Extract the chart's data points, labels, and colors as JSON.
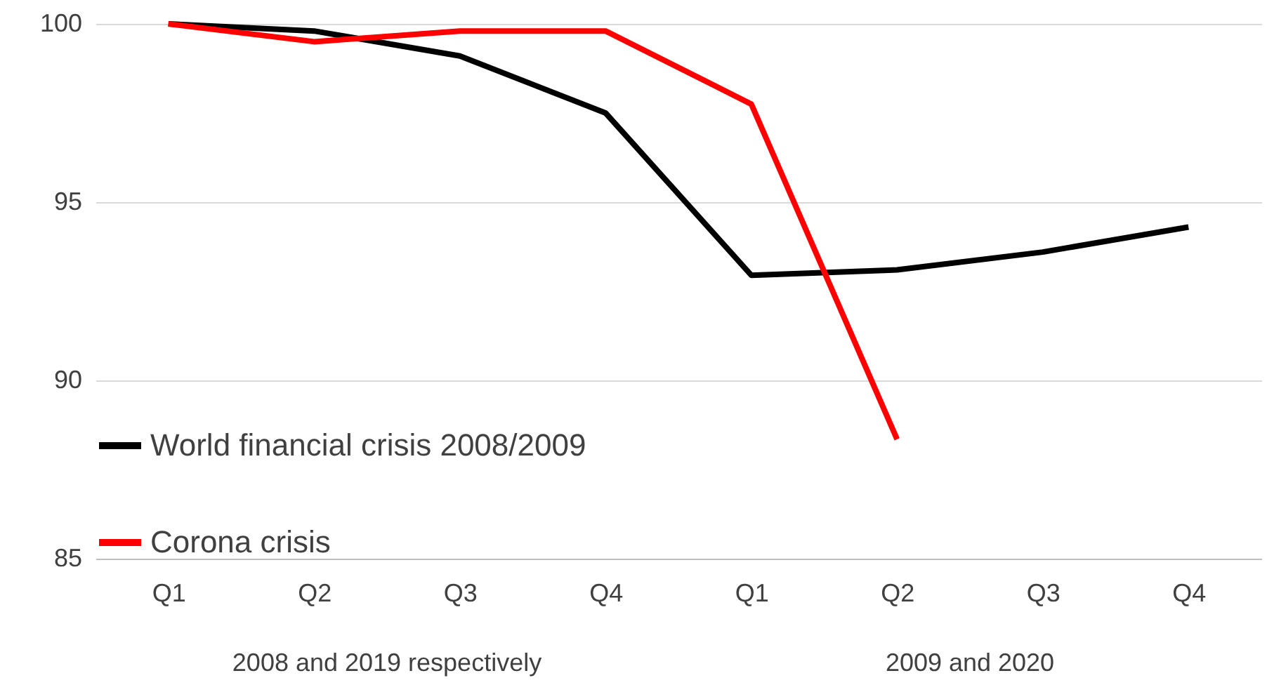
{
  "chart_data": {
    "type": "line",
    "categories": [
      "Q1",
      "Q2",
      "Q3",
      "Q4",
      "Q1",
      "Q2",
      "Q3",
      "Q4"
    ],
    "series": [
      {
        "name": "World financial crisis 2008/2009",
        "color": "#000000",
        "values": [
          100,
          99.8,
          99.1,
          97.5,
          92.95,
          93.1,
          93.6,
          94.3
        ]
      },
      {
        "name": "Corona crisis",
        "color": "#ff0000",
        "values": [
          100,
          99.5,
          99.8,
          99.8,
          97.75,
          88.35,
          null,
          null
        ]
      }
    ],
    "ylim": [
      85,
      100
    ],
    "yticks": [
      85,
      90,
      95,
      100
    ],
    "grid": "y",
    "legend": "bottom left",
    "marker": "none",
    "line_style": "solid",
    "annotations": [
      "2008 and 2019 respectively",
      "2009 and 2020"
    ]
  }
}
